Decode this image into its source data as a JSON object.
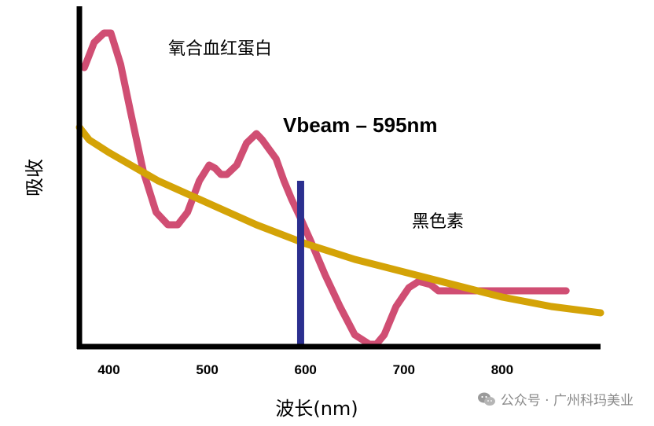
{
  "chart_data": {
    "type": "line",
    "ylabel": "吸收",
    "xlabel": "波长(nm)",
    "x_ticks": [
      400,
      500,
      600,
      700,
      800
    ],
    "xlim": [
      370,
      900
    ],
    "ylim": [
      0,
      1
    ],
    "grid": false,
    "series": [
      {
        "name": "氧合血红蛋白",
        "color": "#d04e73",
        "x": [
          375,
          385,
          395,
          402,
          412,
          422,
          435,
          448,
          460,
          470,
          480,
          492,
          502,
          508,
          514,
          520,
          530,
          540,
          550,
          556,
          563,
          570,
          578,
          586,
          595,
          605,
          620,
          635,
          650,
          665,
          672,
          680,
          692,
          705,
          715,
          727,
          735,
          750,
          780,
          820,
          850,
          865
        ],
        "y": [
          0.88,
          0.96,
          0.99,
          0.99,
          0.89,
          0.74,
          0.55,
          0.42,
          0.38,
          0.38,
          0.42,
          0.52,
          0.57,
          0.56,
          0.54,
          0.54,
          0.57,
          0.64,
          0.67,
          0.65,
          0.62,
          0.59,
          0.52,
          0.46,
          0.4,
          0.33,
          0.22,
          0.12,
          0.03,
          0.0,
          0.0,
          0.03,
          0.12,
          0.18,
          0.2,
          0.19,
          0.17,
          0.17,
          0.17,
          0.17,
          0.17,
          0.17
        ]
      },
      {
        "name": "黑色素",
        "color": "#d4a307",
        "x": [
          370,
          380,
          400,
          450,
          500,
          550,
          600,
          650,
          700,
          750,
          800,
          850,
          900
        ],
        "y": [
          0.69,
          0.65,
          0.61,
          0.52,
          0.45,
          0.38,
          0.32,
          0.27,
          0.23,
          0.19,
          0.15,
          0.12,
          0.1
        ]
      }
    ],
    "markers": [
      {
        "label": "Vbeam – 595nm",
        "x": 595,
        "y_top": 0.52,
        "color": "#2b2f8f"
      }
    ],
    "annotations": [
      {
        "text": "氧合血红蛋白"
      },
      {
        "text": "黑色素"
      },
      {
        "text": "Vbeam – 595nm"
      }
    ]
  },
  "colors": {
    "axis": "#000000",
    "oxyhemoglobin": "#d04e73",
    "melanin": "#d4a307",
    "vbeam": "#2b2f8f",
    "watermark": "#8a8a8a"
  },
  "watermark": {
    "text": "公众号 · 广州科玛美业",
    "icon": "wechat-icon"
  }
}
